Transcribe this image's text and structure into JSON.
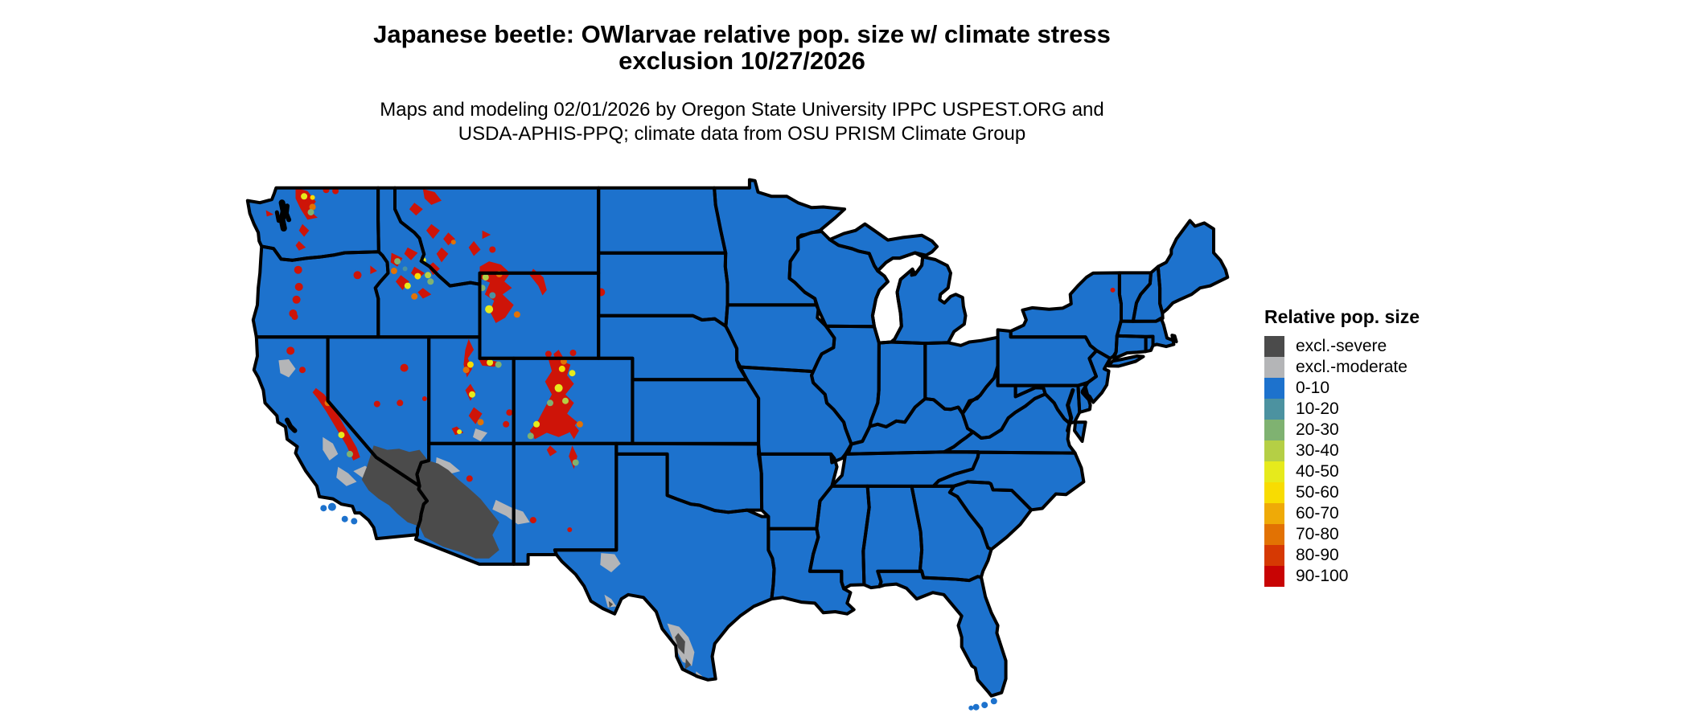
{
  "header": {
    "title_line1": "Japanese beetle: OWlarvae relative pop. size w/ climate stress",
    "title_line2": "exclusion 10/27/2026",
    "subtitle_line1": "Maps and modeling 02/01/2026 by Oregon State University IPPC USPEST.ORG and",
    "subtitle_line2": "USDA-APHIS-PPQ; climate data from OSU PRISM Climate Group"
  },
  "legend": {
    "title": "Relative pop. size",
    "items": [
      {
        "label": "excl.-severe",
        "color": "#4b4b4b"
      },
      {
        "label": "excl.-moderate",
        "color": "#b4b5b7"
      },
      {
        "label": "0-10",
        "color": "#1d72cd"
      },
      {
        "label": "10-20",
        "color": "#4c92a0"
      },
      {
        "label": "20-30",
        "color": "#7fb271"
      },
      {
        "label": "30-40",
        "color": "#b5cf45"
      },
      {
        "label": "40-50",
        "color": "#e6ea1c"
      },
      {
        "label": "50-60",
        "color": "#f8dc02"
      },
      {
        "label": "60-70",
        "color": "#efaa07"
      },
      {
        "label": "70-80",
        "color": "#e27203"
      },
      {
        "label": "80-90",
        "color": "#d63903"
      },
      {
        "label": "90-100",
        "color": "#c80404"
      }
    ]
  },
  "map": {
    "background": "#ffffff",
    "land_color": "#1d72cd",
    "border_color": "#000000",
    "water_color": "#000000",
    "palette": {
      "red": "#ce1408",
      "orange": "#e27203",
      "gold": "#f8dc02",
      "yellow": "#e6ea1c",
      "yg": "#b5cf45",
      "green": "#7fb271",
      "teal": "#4c92a0",
      "dkgray": "#4b4b4b",
      "ltgray": "#b4b5b7"
    }
  }
}
